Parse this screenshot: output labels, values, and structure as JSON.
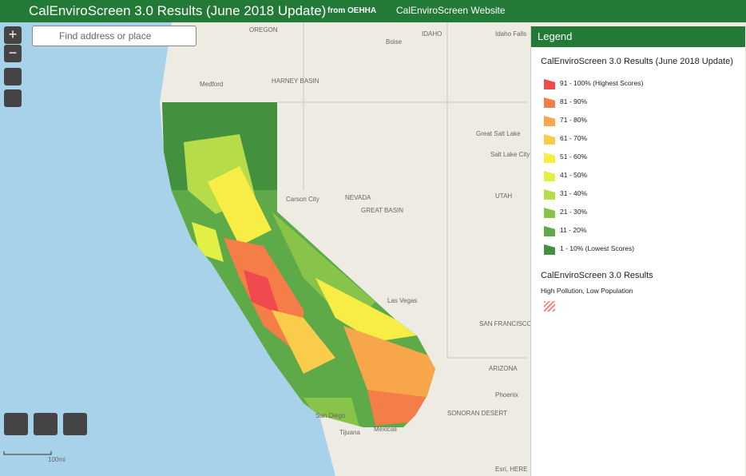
{
  "header": {
    "title": "CalEnviroScreen 3.0 Results (June 2018 Update)",
    "links": [
      "from OEHHA",
      "CalEnviroScreen Website"
    ]
  },
  "search": {
    "placeholder": "Find address or place"
  },
  "zoom": {
    "in": "+",
    "out": "−"
  },
  "map": {
    "labels": [
      "OREGON",
      "IDAHO",
      "Boise",
      "Idaho Falls",
      "Medford",
      "HARNEY BASIN",
      "Carson City",
      "NEVADA",
      "GREAT BASIN",
      "UTAH",
      "Great Salt Lake",
      "Salt Lake City",
      "Las Vegas",
      "ARIZONA",
      "Phoenix",
      "SONORAN DESERT",
      "San Diego",
      "Tijuana",
      "Mexicali",
      "SAN FRANCISCO"
    ],
    "attribution": "Esri, HERE",
    "scale": "100mi"
  },
  "legend": {
    "title": "Legend",
    "layers": [
      {
        "title": "CalEnviroScreen 3.0 Results (June 2018 Update)",
        "items": [
          {
            "label": "91 - 100% (Highest Scores)",
            "color": "#f04a4e"
          },
          {
            "label": "81 - 90%",
            "color": "#f47d48"
          },
          {
            "label": "71 - 80%",
            "color": "#f8a64a"
          },
          {
            "label": "61 - 70%",
            "color": "#f9cd4b"
          },
          {
            "label": "51 - 60%",
            "color": "#f7ed45"
          },
          {
            "label": "41 - 50%",
            "color": "#e2ef45"
          },
          {
            "label": "31 - 40%",
            "color": "#b6dc4a"
          },
          {
            "label": "21 - 30%",
            "color": "#88c44a"
          },
          {
            "label": "11 - 20%",
            "color": "#5ea948"
          },
          {
            "label": "1 - 10% (Lowest Scores)",
            "color": "#43903f"
          }
        ]
      },
      {
        "title": "CalEnviroScreen 3.0 Results",
        "items": [
          {
            "label": "High Pollution, Low Population"
          }
        ]
      }
    ]
  }
}
